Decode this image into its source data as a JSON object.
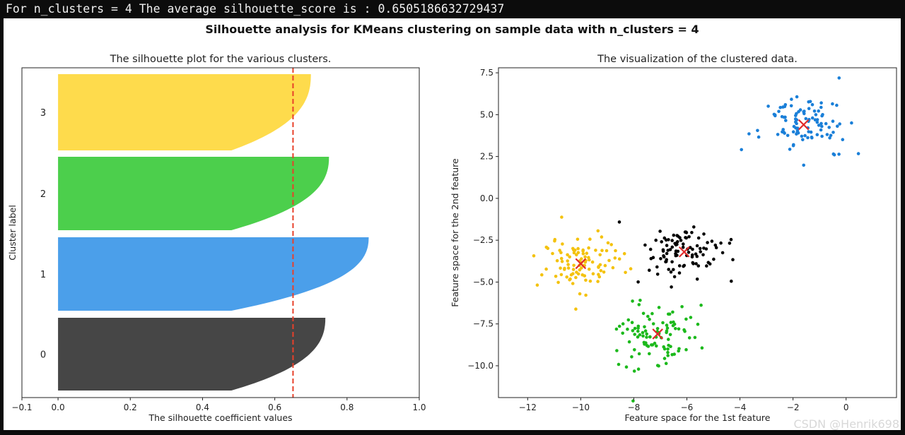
{
  "console": {
    "output_line": "For n_clusters = 4 The average silhouette_score is : 0.6505186632729437"
  },
  "figure": {
    "suptitle": "Silhouette analysis for KMeans clustering on sample data with n_clusters = 4"
  },
  "watermark": "CSDN @Henrik698",
  "colors": {
    "cluster0": "#464646",
    "cluster1": "#4b9fea",
    "cluster2": "#4ccf4c",
    "cluster3": "#fedb4c",
    "scatter0": "#000000",
    "scatter1": "#1a7fd8",
    "scatter2": "#1cb91c",
    "scatter3": "#f4c20d",
    "average_line": "#e8402a",
    "centers": "#e12b2b"
  },
  "chart_data": [
    {
      "type": "area",
      "title": "The silhouette plot for the various clusters.",
      "xlabel": "The silhouette coefficient values",
      "ylabel": "Cluster label",
      "xlim": [
        -0.1,
        1.0
      ],
      "xticks": [
        -0.1,
        0.0,
        0.2,
        0.4,
        0.6,
        0.8,
        1.0
      ],
      "xtick_labels": [
        "−0.1",
        "0.0",
        "0.2",
        "0.4",
        "0.6",
        "0.8",
        "1.0"
      ],
      "average_silhouette": 0.6505,
      "clusters": [
        {
          "label": "0",
          "max": 0.74,
          "min": 0.0,
          "size": 100
        },
        {
          "label": "1",
          "max": 0.86,
          "min": 0.0,
          "size": 100
        },
        {
          "label": "2",
          "max": 0.75,
          "min": 0.0,
          "size": 100
        },
        {
          "label": "3",
          "max": 0.7,
          "min": 0.0,
          "size": 100
        }
      ]
    },
    {
      "type": "scatter",
      "title": "The visualization of the clustered data.",
      "xlabel": "Feature space for the 1st feature",
      "ylabel": "Feature space for the 2nd feature",
      "xlim": [
        -13.1,
        1.9
      ],
      "ylim": [
        -11.9,
        7.8
      ],
      "xticks": [
        -12,
        -10,
        -8,
        -6,
        -4,
        -2,
        0
      ],
      "xtick_labels": [
        "−12",
        "−10",
        "−8",
        "−6",
        "−4",
        "−2",
        "0"
      ],
      "yticks": [
        -10.0,
        -7.5,
        -5.0,
        -2.5,
        0.0,
        2.5,
        5.0,
        7.5
      ],
      "ytick_labels": [
        "−10.0",
        "−7.5",
        "−5.0",
        "−2.5",
        "0.0",
        "2.5",
        "5.0",
        "7.5"
      ],
      "clusters": [
        {
          "label": "0",
          "center": [
            -6.1,
            -3.2
          ],
          "spread": [
            0.75,
            0.85
          ],
          "count": 100
        },
        {
          "label": "1",
          "center": [
            -1.6,
            4.4
          ],
          "spread": [
            0.8,
            0.85
          ],
          "count": 100
        },
        {
          "label": "2",
          "center": [
            -7.1,
            -8.1
          ],
          "spread": [
            0.75,
            0.85
          ],
          "count": 100
        },
        {
          "label": "3",
          "center": [
            -10.0,
            -3.9
          ],
          "spread": [
            0.85,
            0.8
          ],
          "count": 100
        }
      ]
    }
  ]
}
